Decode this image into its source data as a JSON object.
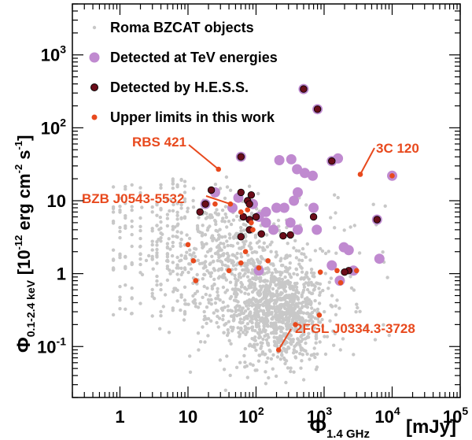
{
  "chart_data": {
    "type": "scatter",
    "x_scale": "log",
    "y_scale": "log",
    "xlim": [
      0.2,
      100000
    ],
    "ylim": [
      0.02,
      5000
    ],
    "x_ticks": [
      {
        "value": 1,
        "label": "1"
      },
      {
        "value": 10,
        "label": "10"
      },
      {
        "value": 100,
        "label": "10",
        "exp": "2"
      },
      {
        "value": 1000,
        "label": "10",
        "exp": "3"
      },
      {
        "value": 10000,
        "label": "10",
        "exp": "4"
      },
      {
        "value": 100000,
        "label": "10",
        "exp": "5"
      }
    ],
    "y_ticks": [
      {
        "value": 0.1,
        "label": "10",
        "exp": "-1"
      },
      {
        "value": 1,
        "label": "1"
      },
      {
        "value": 10,
        "label": "10"
      },
      {
        "value": 100,
        "label": "10",
        "exp": "2"
      },
      {
        "value": 1000,
        "label": "10",
        "exp": "3"
      }
    ],
    "xlabel": {
      "main": "Φ",
      "sub": "1.4 GHz",
      "unit": "[mJy]"
    },
    "ylabel": {
      "main": "Φ",
      "sub": "0.1-2.4 keV",
      "unit_pre": "[10",
      "unit_exp1": "-12",
      "unit_mid": " erg cm",
      "unit_exp2": "-2",
      "unit_s": " s",
      "unit_exp3": "-1",
      "unit_post": "]"
    },
    "legend": [
      {
        "label": "Roma BZCAT objects",
        "color": "#c8c8c8",
        "edge": "none",
        "size": 2.2
      },
      {
        "label": "Detected at TeV energies",
        "color": "#c08ad0",
        "edge": "none",
        "size": 6.5
      },
      {
        "label": "Detected by H.E.S.S.",
        "color": "#6b0d1a",
        "edge": "#000000",
        "size": 4.5
      },
      {
        "label": "Upper limits in this work",
        "color": "#e8491d",
        "edge": "none",
        "size": 3.5
      }
    ],
    "annotations": [
      {
        "text": "RBS 421",
        "x": 28,
        "y": 27
      },
      {
        "text": "3C 120",
        "x": 3400,
        "y": 23
      },
      {
        "text": "BZB J0543-5532",
        "x": 42,
        "y": 9
      },
      {
        "text": "2FGL J0334.3-3728",
        "x": 215,
        "y": 0.09
      }
    ],
    "series": [
      {
        "name": "Detected at TeV energies",
        "points": [
          [
            500,
            340
          ],
          [
            800,
            180
          ],
          [
            60,
            40
          ],
          [
            220,
            36
          ],
          [
            330,
            37
          ],
          [
            400,
            27
          ],
          [
            520,
            24
          ],
          [
            680,
            22
          ],
          [
            1300,
            35
          ],
          [
            1600,
            38
          ],
          [
            10000,
            22
          ],
          [
            18,
            9
          ],
          [
            25,
            13
          ],
          [
            45,
            8
          ],
          [
            55,
            11
          ],
          [
            90,
            9
          ],
          [
            140,
            7
          ],
          [
            200,
            8
          ],
          [
            260,
            8
          ],
          [
            360,
            10
          ],
          [
            410,
            13
          ],
          [
            700,
            8
          ],
          [
            110,
            6
          ],
          [
            140,
            5
          ],
          [
            180,
            4
          ],
          [
            320,
            5
          ],
          [
            410,
            4
          ],
          [
            780,
            4
          ],
          [
            1950,
            2.3
          ],
          [
            2300,
            2.1
          ],
          [
            6500,
            1.6
          ],
          [
            2700,
            1.1
          ],
          [
            1700,
            0.8
          ],
          [
            110,
            1.1
          ],
          [
            6000,
            5.5
          ],
          [
            1300,
            1.3
          ]
        ]
      },
      {
        "name": "Detected by H.E.S.S.",
        "points": [
          [
            500,
            340
          ],
          [
            800,
            180
          ],
          [
            60,
            40
          ],
          [
            1300,
            35
          ],
          [
            22,
            14
          ],
          [
            18,
            9
          ],
          [
            15,
            7
          ],
          [
            60,
            13
          ],
          [
            75,
            10
          ],
          [
            85,
            12
          ],
          [
            65,
            6
          ],
          [
            100,
            6
          ],
          [
            80,
            5.5
          ],
          [
            700,
            6
          ],
          [
            60,
            3.2
          ],
          [
            80,
            4
          ],
          [
            120,
            3.5
          ],
          [
            250,
            3.3
          ],
          [
            320,
            3.4
          ],
          [
            6000,
            5.5
          ],
          [
            2300,
            1.1
          ],
          [
            2000,
            1.05
          ],
          [
            80,
            9
          ]
        ]
      },
      {
        "name": "Upper limits in this work",
        "points": [
          [
            28,
            27
          ],
          [
            3400,
            23
          ],
          [
            10000,
            22
          ],
          [
            42,
            9
          ],
          [
            215,
            0.09
          ],
          [
            380,
            0.2
          ],
          [
            850,
            0.27
          ],
          [
            10,
            2.5
          ],
          [
            12,
            1.5
          ],
          [
            13,
            0.8
          ],
          [
            40,
            1.1
          ],
          [
            60,
            7
          ],
          [
            85,
            5
          ],
          [
            150,
            1.5
          ],
          [
            70,
            2
          ],
          [
            60,
            1.4
          ],
          [
            90,
            4
          ],
          [
            110,
            1.2
          ],
          [
            1550,
            1.1
          ],
          [
            1750,
            0.75
          ],
          [
            3000,
            1.1
          ],
          [
            880,
            1.05
          ],
          [
            25,
            9
          ],
          [
            75,
            7.5
          ]
        ]
      }
    ]
  }
}
